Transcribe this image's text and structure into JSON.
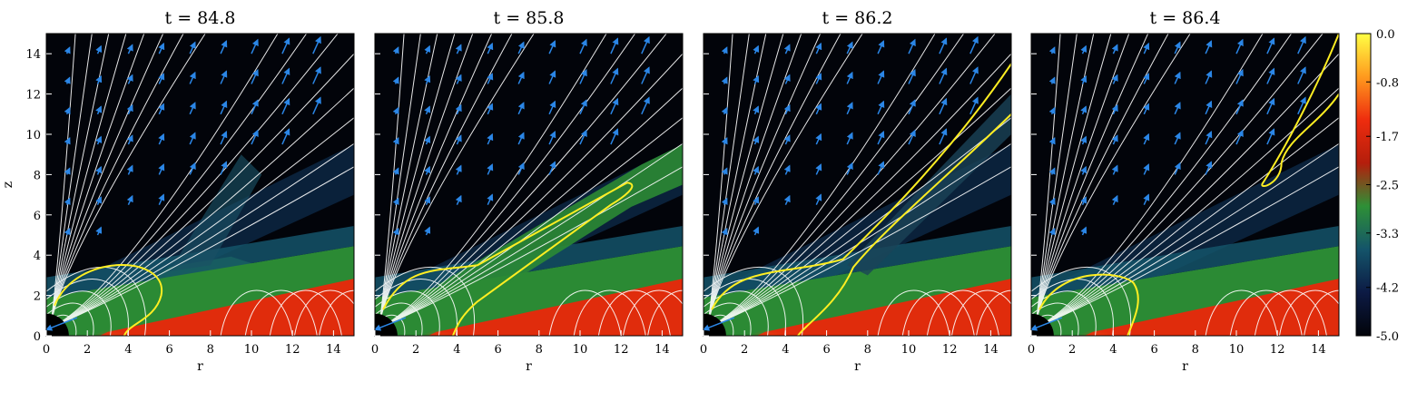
{
  "chart_data": {
    "type": "heatmap",
    "panels": [
      {
        "title": "t = 84.8",
        "time": 84.8
      },
      {
        "title": "t = 85.8",
        "time": 85.8
      },
      {
        "title": "t = 86.2",
        "time": 86.2
      },
      {
        "title": "t = 86.4",
        "time": 86.4
      }
    ],
    "xlabel": "r",
    "ylabel": "z",
    "xlim": [
      0,
      15
    ],
    "ylim": [
      0,
      15
    ],
    "x_ticks": [
      "0",
      "2",
      "4",
      "6",
      "8",
      "10",
      "12",
      "14"
    ],
    "y_ticks": [
      "0",
      "2",
      "4",
      "6",
      "8",
      "10",
      "12",
      "14"
    ],
    "colorbar": {
      "range": [
        -5.0,
        0.0
      ],
      "tick_labels": [
        "0.0",
        "-0.8",
        "-1.7",
        "-2.5",
        "-3.3",
        "-4.2",
        "-5.0"
      ],
      "colors": [
        "#ffff44",
        "#ff9a1e",
        "#ee2c0e",
        "#b41e0c",
        "#2e9036",
        "#14546a",
        "#0c1a44",
        "#02040a"
      ]
    },
    "overlays": {
      "field_line_color": "#ffffff",
      "contour_color": "#ffee22",
      "velocity_arrow_color": "#2b86e6"
    }
  }
}
